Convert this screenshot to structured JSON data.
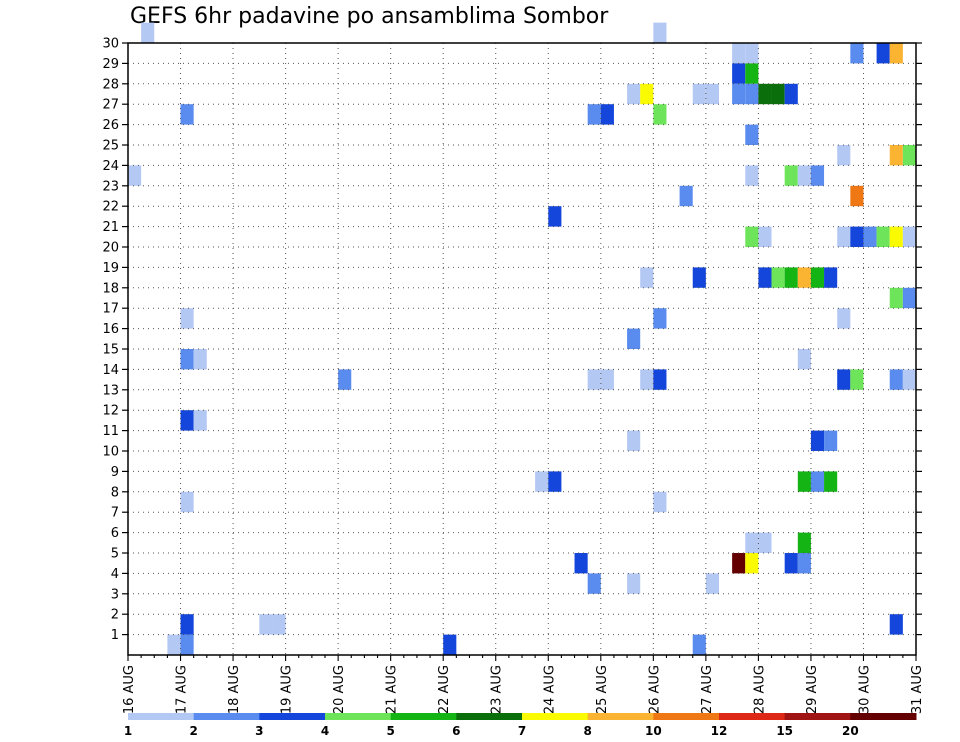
{
  "chart_data": {
    "type": "heatmap",
    "title": "GEFS 6hr padavine po ansamblima Sombor",
    "x_tick_labels": [
      "16 AUG",
      "17 AUG",
      "18 AUG",
      "19 AUG",
      "20 AUG",
      "21 AUG",
      "22 AUG",
      "23 AUG",
      "24 AUG",
      "25 AUG",
      "26 AUG",
      "27 AUG",
      "28 AUG",
      "29 AUG",
      "30 AUG",
      "31 AUG"
    ],
    "y_tick_labels": [
      "1",
      "2",
      "3",
      "4",
      "5",
      "6",
      "7",
      "8",
      "9",
      "10",
      "11",
      "12",
      "13",
      "14",
      "15",
      "16",
      "17",
      "18",
      "19",
      "20",
      "21",
      "22",
      "23",
      "24",
      "25",
      "26",
      "27",
      "28",
      "29",
      "30"
    ],
    "x_range": [
      0,
      60
    ],
    "y_range": [
      0,
      30
    ],
    "grid": true,
    "legend_placement": "bottom",
    "legend_labels": [
      "1",
      "2",
      "3",
      "4",
      "5",
      "6",
      "7",
      "8",
      "10",
      "12",
      "15",
      "20"
    ],
    "legend_colors": [
      "#b4c8f4",
      "#5a8cf0",
      "#1446dc",
      "#6ee45a",
      "#14b414",
      "#0a6e0a",
      "#fafa00",
      "#fab432",
      "#f07814",
      "#dc2814",
      "#a01414",
      "#640000"
    ],
    "level_colors": {
      "1": "#b4c8f4",
      "2": "#5a8cf0",
      "3": "#1446dc",
      "4": "#6ee45a",
      "5": "#14b414",
      "6": "#0a6e0a",
      "7": "#fafa00",
      "8": "#fab432",
      "10": "#f07814",
      "12": "#dc2814",
      "15": "#a01414",
      "20": "#640000"
    },
    "cells": [
      {
        "t": 1,
        "m": 30,
        "v": 1
      },
      {
        "t": 4,
        "m": 1,
        "v": 3
      },
      {
        "t": 4,
        "m": 0,
        "v": 2
      },
      {
        "t": 3,
        "m": 0,
        "v": 1
      },
      {
        "t": 4,
        "m": 11,
        "v": 3
      },
      {
        "t": 5,
        "m": 11,
        "v": 1
      },
      {
        "t": 4,
        "m": 14,
        "v": 2
      },
      {
        "t": 5,
        "m": 14,
        "v": 1
      },
      {
        "t": 4,
        "m": 7,
        "v": 1
      },
      {
        "t": 4,
        "m": 16,
        "v": 1
      },
      {
        "t": 4,
        "m": 26,
        "v": 2
      },
      {
        "t": 0,
        "m": 23,
        "v": 1
      },
      {
        "t": 10,
        "m": 1,
        "v": 1
      },
      {
        "t": 11,
        "m": 1,
        "v": 1
      },
      {
        "t": 16,
        "m": 13,
        "v": 2
      },
      {
        "t": 24,
        "m": 0,
        "v": 3
      },
      {
        "t": 31,
        "m": 8,
        "v": 1
      },
      {
        "t": 32,
        "m": 8,
        "v": 3
      },
      {
        "t": 32,
        "m": 21,
        "v": 3
      },
      {
        "t": 34,
        "m": 4,
        "v": 3
      },
      {
        "t": 35,
        "m": 3,
        "v": 2
      },
      {
        "t": 35,
        "m": 26,
        "v": 2
      },
      {
        "t": 36,
        "m": 26,
        "v": 3
      },
      {
        "t": 35,
        "m": 13,
        "v": 1
      },
      {
        "t": 36,
        "m": 13,
        "v": 1
      },
      {
        "t": 38,
        "m": 3,
        "v": 1
      },
      {
        "t": 38,
        "m": 10,
        "v": 1
      },
      {
        "t": 38,
        "m": 15,
        "v": 2
      },
      {
        "t": 38,
        "m": 27,
        "v": 1
      },
      {
        "t": 39,
        "m": 27,
        "v": 7
      },
      {
        "t": 39,
        "m": 13,
        "v": 1
      },
      {
        "t": 40,
        "m": 13,
        "v": 3
      },
      {
        "t": 39,
        "m": 18,
        "v": 1
      },
      {
        "t": 40,
        "m": 30,
        "v": 1
      },
      {
        "t": 40,
        "m": 26,
        "v": 4
      },
      {
        "t": 40,
        "m": 16,
        "v": 2
      },
      {
        "t": 40,
        "m": 7,
        "v": 1
      },
      {
        "t": 42,
        "m": 22,
        "v": 2
      },
      {
        "t": 43,
        "m": 0,
        "v": 2
      },
      {
        "t": 43,
        "m": 18,
        "v": 3
      },
      {
        "t": 43,
        "m": 27,
        "v": 1
      },
      {
        "t": 44,
        "m": 27,
        "v": 1
      },
      {
        "t": 44,
        "m": 3,
        "v": 1
      },
      {
        "t": 46,
        "m": 29,
        "v": 1
      },
      {
        "t": 47,
        "m": 29,
        "v": 1
      },
      {
        "t": 46,
        "m": 28,
        "v": 3
      },
      {
        "t": 47,
        "m": 28,
        "v": 5
      },
      {
        "t": 46,
        "m": 27,
        "v": 2
      },
      {
        "t": 47,
        "m": 27,
        "v": 2
      },
      {
        "t": 48,
        "m": 27,
        "v": 6
      },
      {
        "t": 49,
        "m": 27,
        "v": 6
      },
      {
        "t": 50,
        "m": 27,
        "v": 3
      },
      {
        "t": 46,
        "m": 4,
        "v": 20
      },
      {
        "t": 47,
        "m": 4,
        "v": 7
      },
      {
        "t": 47,
        "m": 5,
        "v": 1
      },
      {
        "t": 48,
        "m": 5,
        "v": 1
      },
      {
        "t": 47,
        "m": 25,
        "v": 2
      },
      {
        "t": 47,
        "m": 23,
        "v": 1
      },
      {
        "t": 47,
        "m": 20,
        "v": 4
      },
      {
        "t": 48,
        "m": 20,
        "v": 1
      },
      {
        "t": 48,
        "m": 18,
        "v": 3
      },
      {
        "t": 49,
        "m": 18,
        "v": 4
      },
      {
        "t": 50,
        "m": 18,
        "v": 5
      },
      {
        "t": 51,
        "m": 18,
        "v": 8
      },
      {
        "t": 52,
        "m": 18,
        "v": 5
      },
      {
        "t": 53,
        "m": 18,
        "v": 3
      },
      {
        "t": 50,
        "m": 23,
        "v": 4
      },
      {
        "t": 51,
        "m": 23,
        "v": 1
      },
      {
        "t": 52,
        "m": 23,
        "v": 2
      },
      {
        "t": 50,
        "m": 4,
        "v": 3
      },
      {
        "t": 51,
        "m": 4,
        "v": 2
      },
      {
        "t": 51,
        "m": 14,
        "v": 1
      },
      {
        "t": 51,
        "m": 5,
        "v": 5
      },
      {
        "t": 51,
        "m": 8,
        "v": 5
      },
      {
        "t": 52,
        "m": 8,
        "v": 2
      },
      {
        "t": 53,
        "m": 8,
        "v": 5
      },
      {
        "t": 52,
        "m": 10,
        "v": 3
      },
      {
        "t": 53,
        "m": 10,
        "v": 2
      },
      {
        "t": 54,
        "m": 24,
        "v": 1
      },
      {
        "t": 54,
        "m": 20,
        "v": 1
      },
      {
        "t": 54,
        "m": 16,
        "v": 1
      },
      {
        "t": 54,
        "m": 13,
        "v": 3
      },
      {
        "t": 55,
        "m": 13,
        "v": 4
      },
      {
        "t": 55,
        "m": 29,
        "v": 2
      },
      {
        "t": 55,
        "m": 22,
        "v": 10
      },
      {
        "t": 55,
        "m": 20,
        "v": 3
      },
      {
        "t": 56,
        "m": 20,
        "v": 2
      },
      {
        "t": 57,
        "m": 20,
        "v": 4
      },
      {
        "t": 58,
        "m": 20,
        "v": 7
      },
      {
        "t": 59,
        "m": 20,
        "v": 1
      },
      {
        "t": 57,
        "m": 29,
        "v": 3
      },
      {
        "t": 58,
        "m": 29,
        "v": 8
      },
      {
        "t": 58,
        "m": 24,
        "v": 8
      },
      {
        "t": 59,
        "m": 24,
        "v": 4
      },
      {
        "t": 58,
        "m": 17,
        "v": 4
      },
      {
        "t": 59,
        "m": 17,
        "v": 2
      },
      {
        "t": 58,
        "m": 13,
        "v": 2
      },
      {
        "t": 59,
        "m": 13,
        "v": 1
      },
      {
        "t": 58,
        "m": 1,
        "v": 3
      }
    ]
  }
}
